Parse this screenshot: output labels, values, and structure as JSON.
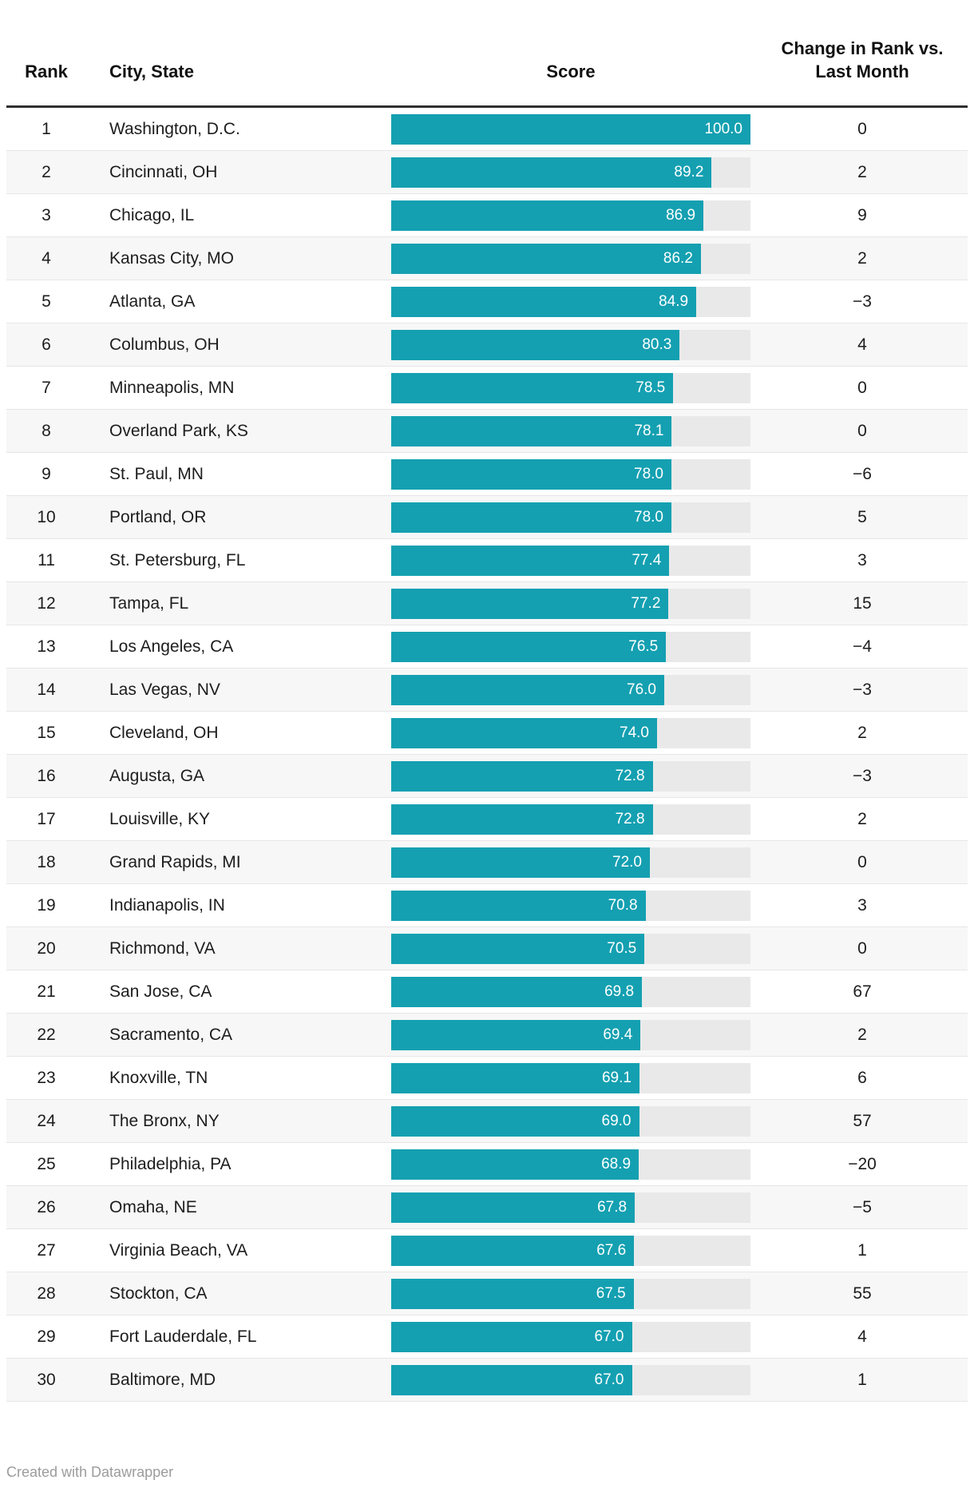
{
  "table": {
    "columns": {
      "rank": "Rank",
      "city": "City, State",
      "score": "Score",
      "change": "Change in Rank vs. Last Month"
    },
    "rows": [
      {
        "rank": "1",
        "city": "Washington, D.C.",
        "score": "100.0",
        "change": "0"
      },
      {
        "rank": "2",
        "city": "Cincinnati, OH",
        "score": "89.2",
        "change": "2"
      },
      {
        "rank": "3",
        "city": "Chicago, IL",
        "score": "86.9",
        "change": "9"
      },
      {
        "rank": "4",
        "city": "Kansas City, MO",
        "score": "86.2",
        "change": "2"
      },
      {
        "rank": "5",
        "city": "Atlanta, GA",
        "score": "84.9",
        "change": "−3"
      },
      {
        "rank": "6",
        "city": "Columbus, OH",
        "score": "80.3",
        "change": "4"
      },
      {
        "rank": "7",
        "city": "Minneapolis, MN",
        "score": "78.5",
        "change": "0"
      },
      {
        "rank": "8",
        "city": "Overland Park, KS",
        "score": "78.1",
        "change": "0"
      },
      {
        "rank": "9",
        "city": "St. Paul, MN",
        "score": "78.0",
        "change": "−6"
      },
      {
        "rank": "10",
        "city": "Portland, OR",
        "score": "78.0",
        "change": "5"
      },
      {
        "rank": "11",
        "city": "St. Petersburg, FL",
        "score": "77.4",
        "change": "3"
      },
      {
        "rank": "12",
        "city": "Tampa, FL",
        "score": "77.2",
        "change": "15"
      },
      {
        "rank": "13",
        "city": "Los Angeles, CA",
        "score": "76.5",
        "change": "−4"
      },
      {
        "rank": "14",
        "city": "Las Vegas, NV",
        "score": "76.0",
        "change": "−3"
      },
      {
        "rank": "15",
        "city": "Cleveland, OH",
        "score": "74.0",
        "change": "2"
      },
      {
        "rank": "16",
        "city": "Augusta, GA",
        "score": "72.8",
        "change": "−3"
      },
      {
        "rank": "17",
        "city": "Louisville, KY",
        "score": "72.8",
        "change": "2"
      },
      {
        "rank": "18",
        "city": "Grand Rapids, MI",
        "score": "72.0",
        "change": "0"
      },
      {
        "rank": "19",
        "city": "Indianapolis, IN",
        "score": "70.8",
        "change": "3"
      },
      {
        "rank": "20",
        "city": "Richmond, VA",
        "score": "70.5",
        "change": "0"
      },
      {
        "rank": "21",
        "city": "San Jose, CA",
        "score": "69.8",
        "change": "67"
      },
      {
        "rank": "22",
        "city": "Sacramento, CA",
        "score": "69.4",
        "change": "2"
      },
      {
        "rank": "23",
        "city": "Knoxville, TN",
        "score": "69.1",
        "change": "6"
      },
      {
        "rank": "24",
        "city": "The Bronx, NY",
        "score": "69.0",
        "change": "57"
      },
      {
        "rank": "25",
        "city": "Philadelphia, PA",
        "score": "68.9",
        "change": "−20"
      },
      {
        "rank": "26",
        "city": "Omaha, NE",
        "score": "67.8",
        "change": "−5"
      },
      {
        "rank": "27",
        "city": "Virginia Beach, VA",
        "score": "67.6",
        "change": "1"
      },
      {
        "rank": "28",
        "city": "Stockton, CA",
        "score": "67.5",
        "change": "55"
      },
      {
        "rank": "29",
        "city": "Fort Lauderdale, FL",
        "score": "67.0",
        "change": "4"
      },
      {
        "rank": "30",
        "city": "Baltimore, MD",
        "score": "67.0",
        "change": "1"
      }
    ]
  },
  "chart_data": {
    "type": "table",
    "title": "",
    "columns": [
      "Rank",
      "City, State",
      "Score",
      "Change in Rank vs. Last Month"
    ],
    "bar_column": "Score",
    "bar_range": [
      0,
      100
    ],
    "categories": [
      "Washington, D.C.",
      "Cincinnati, OH",
      "Chicago, IL",
      "Kansas City, MO",
      "Atlanta, GA",
      "Columbus, OH",
      "Minneapolis, MN",
      "Overland Park, KS",
      "St. Paul, MN",
      "Portland, OR",
      "St. Petersburg, FL",
      "Tampa, FL",
      "Los Angeles, CA",
      "Las Vegas, NV",
      "Cleveland, OH",
      "Augusta, GA",
      "Louisville, KY",
      "Grand Rapids, MI",
      "Indianapolis, IN",
      "Richmond, VA",
      "San Jose, CA",
      "Sacramento, CA",
      "Knoxville, TN",
      "The Bronx, NY",
      "Philadelphia, PA",
      "Omaha, NE",
      "Virginia Beach, VA",
      "Stockton, CA",
      "Fort Lauderdale, FL",
      "Baltimore, MD"
    ],
    "series": [
      {
        "name": "Rank",
        "values": [
          1,
          2,
          3,
          4,
          5,
          6,
          7,
          8,
          9,
          10,
          11,
          12,
          13,
          14,
          15,
          16,
          17,
          18,
          19,
          20,
          21,
          22,
          23,
          24,
          25,
          26,
          27,
          28,
          29,
          30
        ]
      },
      {
        "name": "Score",
        "values": [
          100.0,
          89.2,
          86.9,
          86.2,
          84.9,
          80.3,
          78.5,
          78.1,
          78.0,
          78.0,
          77.4,
          77.2,
          76.5,
          76.0,
          74.0,
          72.8,
          72.8,
          72.0,
          70.8,
          70.5,
          69.8,
          69.4,
          69.1,
          69.0,
          68.9,
          67.8,
          67.6,
          67.5,
          67.0,
          67.0
        ]
      },
      {
        "name": "Change in Rank vs. Last Month",
        "values": [
          0,
          2,
          9,
          2,
          -3,
          4,
          0,
          0,
          -6,
          5,
          3,
          15,
          -4,
          -3,
          2,
          -3,
          2,
          0,
          3,
          0,
          67,
          2,
          6,
          57,
          -20,
          -5,
          1,
          55,
          4,
          1
        ]
      }
    ]
  },
  "colors": {
    "bar": "#14a0b1",
    "bar_track": "#e9e9e9",
    "zebra_row": "#f7f7f7",
    "header_rule": "#2f2f2f",
    "footer_text": "#9c9c9c"
  },
  "footer": {
    "credit": "Created with Datawrapper"
  }
}
